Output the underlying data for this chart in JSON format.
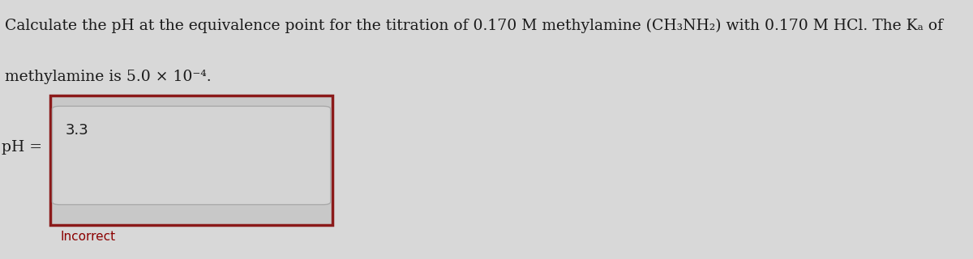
{
  "background_color": "#d8d8d8",
  "question_line1": "Calculate the pH at the equivalence point for the titration of 0.170 M methylamine (CH₃NH₂) with 0.170 M HCl. The Kₐ of",
  "question_line2": "methylamine is 5.0 × 10⁻⁴.",
  "label_text": "pH =",
  "input_value": "3.3",
  "feedback_text": "Incorrect",
  "feedback_color": "#8B0000",
  "outer_box_color": "#8B1A1A",
  "inner_box_color": "#e8e8e8",
  "text_color": "#1a1a1a",
  "question_fontsize": 13.5,
  "label_fontsize": 13.5,
  "input_fontsize": 13,
  "feedback_fontsize": 11
}
